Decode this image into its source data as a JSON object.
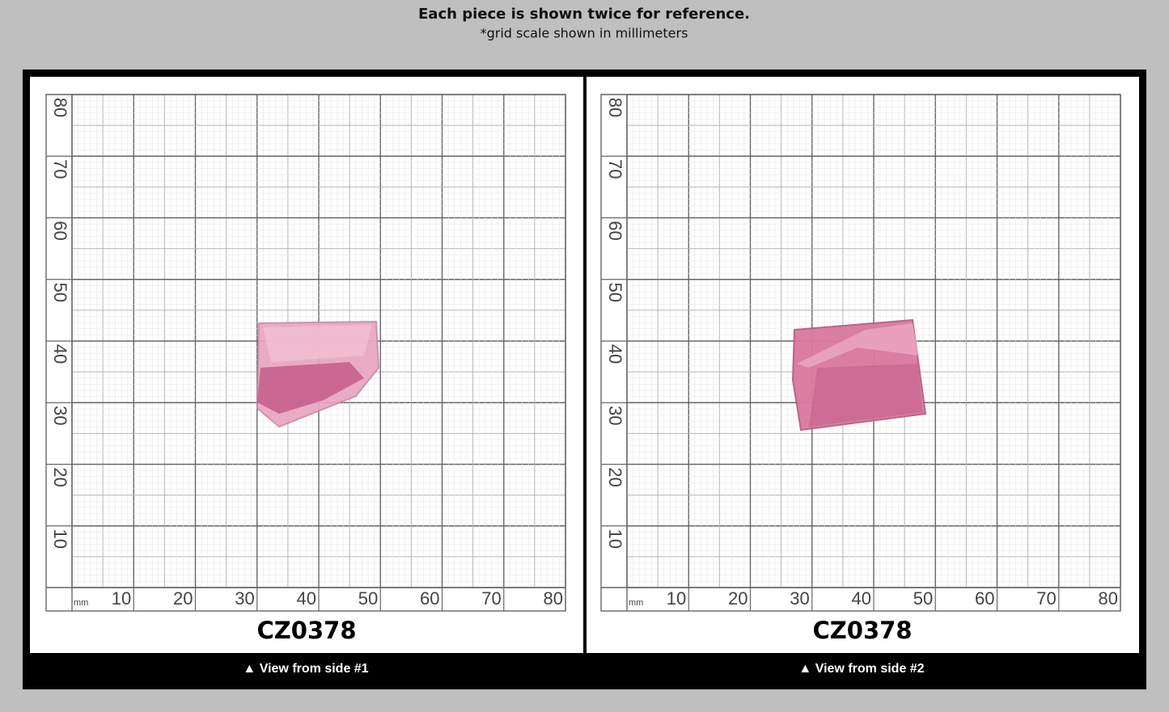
{
  "header": {
    "title": "Each piece is shown twice for reference.",
    "subtitle": "*grid scale shown in millimeters"
  },
  "panels": [
    {
      "code": "CZ0378",
      "caption": "▲ View from side #1",
      "unit": "mm",
      "x_labels": [
        10,
        20,
        30,
        40,
        50,
        60,
        70,
        80
      ],
      "y_labels": [
        10,
        20,
        30,
        40,
        50,
        60,
        70,
        80
      ]
    },
    {
      "code": "CZ0378",
      "caption": "▲ View from side #2",
      "unit": "mm",
      "x_labels": [
        10,
        20,
        30,
        40,
        50,
        60,
        70,
        80
      ],
      "y_labels": [
        10,
        20,
        30,
        40,
        50,
        60,
        70,
        80
      ]
    }
  ]
}
